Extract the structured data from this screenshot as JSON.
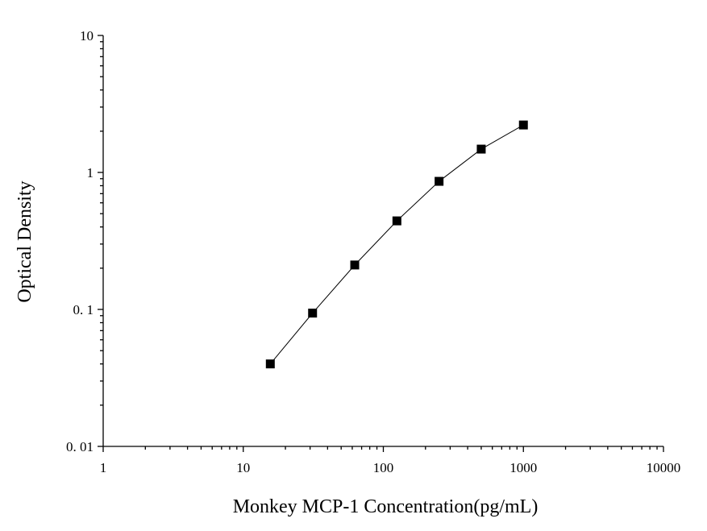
{
  "chart_data": {
    "type": "scatter-line",
    "x_label": "Monkey MCP-1 Concentration(pg/mL)",
    "y_label": "Optical Density",
    "x": [
      15.6,
      31.25,
      62.5,
      125,
      250,
      500,
      1000
    ],
    "values": [
      0.04,
      0.094,
      0.211,
      0.443,
      0.861,
      1.48,
      2.22
    ],
    "color": "#000000",
    "xlim": [
      1,
      10000
    ],
    "ylim": [
      0.01,
      10
    ],
    "xticks": [
      1,
      10,
      100,
      1000,
      10000
    ],
    "yticks": [
      {
        "value": 0.01,
        "label": "0. 01"
      },
      {
        "value": 0.1,
        "label": "0. 1"
      },
      1,
      10
    ],
    "xlog": true,
    "ylog": true,
    "minor_ticks": true
  }
}
